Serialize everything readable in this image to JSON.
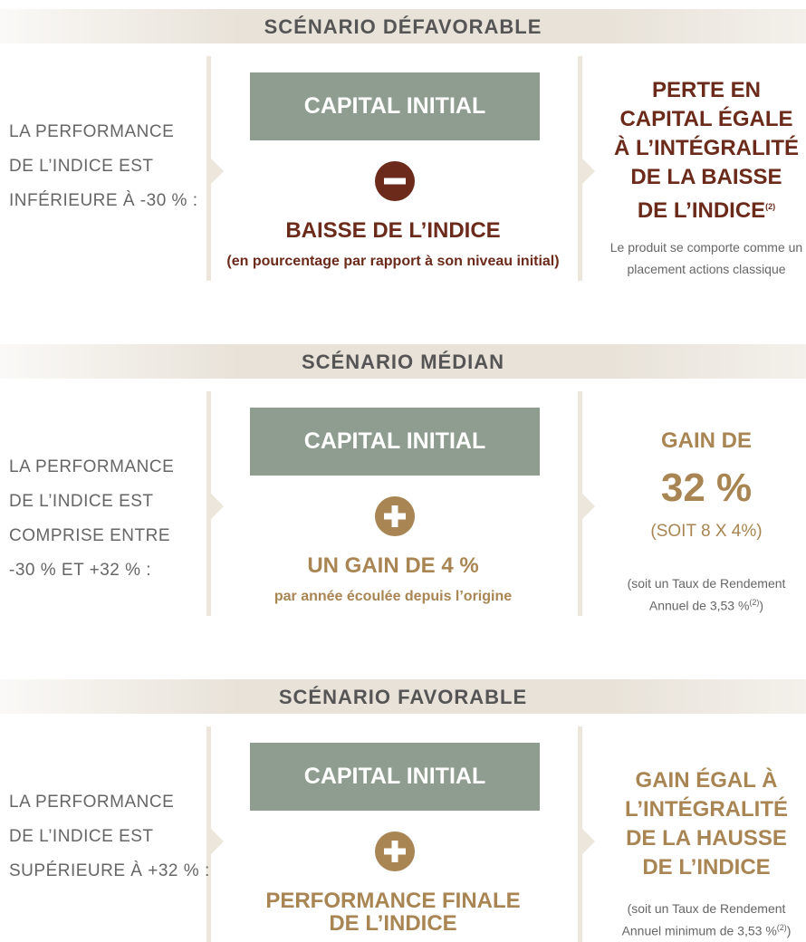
{
  "scenarios": [
    {
      "title": "SCÉNARIO DÉFAVORABLE",
      "color": "#6b2a1a",
      "sign": "minus",
      "condition": [
        "LA PERFORMANCE",
        "DE L’INDICE EST",
        "INFÉRIEURE À -30 % :"
      ],
      "box": "CAPITAL INITIAL",
      "label": [
        "BAISSE DE L’INDICE"
      ],
      "detail": "(en pourcentage par rapport à son niveau initial)",
      "result": [
        "PERTE EN",
        "CAPITAL ÉGALE",
        "À L’INTÉGRALITÉ",
        "DE LA BAISSE",
        "DE L’INDICE"
      ],
      "result_sup": "(2)",
      "note": [
        "Le produit se comporte comme un",
        "placement actions classique"
      ]
    },
    {
      "title": "SCÉNARIO MÉDIAN",
      "color": "#a88552",
      "sign": "plus",
      "condition": [
        "LA PERFORMANCE",
        "DE L’INDICE EST",
        "COMPRISE ENTRE",
        "-30 % ET +32 % :"
      ],
      "box": "CAPITAL INITIAL",
      "label": [
        "UN GAIN DE 4 %"
      ],
      "detail": "par année écoulée depuis l’origine",
      "result": [
        "GAIN DE"
      ],
      "big": "32 %",
      "big_sub": "(SOIT 8 X 4%)",
      "note": [
        "(soit un Taux de Rendement",
        "Annuel de 3,53 %"
      ],
      "note_sup": "(2)",
      "note_close": ")"
    },
    {
      "title": "SCÉNARIO FAVORABLE",
      "color": "#a88552",
      "sign": "plus",
      "condition": [
        "LA PERFORMANCE",
        "DE L’INDICE EST",
        "SUPÉRIEURE À +32 % :"
      ],
      "box": "CAPITAL INITIAL",
      "label": [
        "PERFORMANCE FINALE",
        "DE L’INDICE"
      ],
      "result": [
        "GAIN ÉGAL À",
        "L’INTÉGRALITÉ",
        "DE LA HAUSSE",
        "DE L’INDICE"
      ],
      "note": [
        "(soit un Taux de Rendement",
        "Annuel minimum de 3,53 %"
      ],
      "note_sup": "(2)",
      "note_close": ")"
    }
  ]
}
